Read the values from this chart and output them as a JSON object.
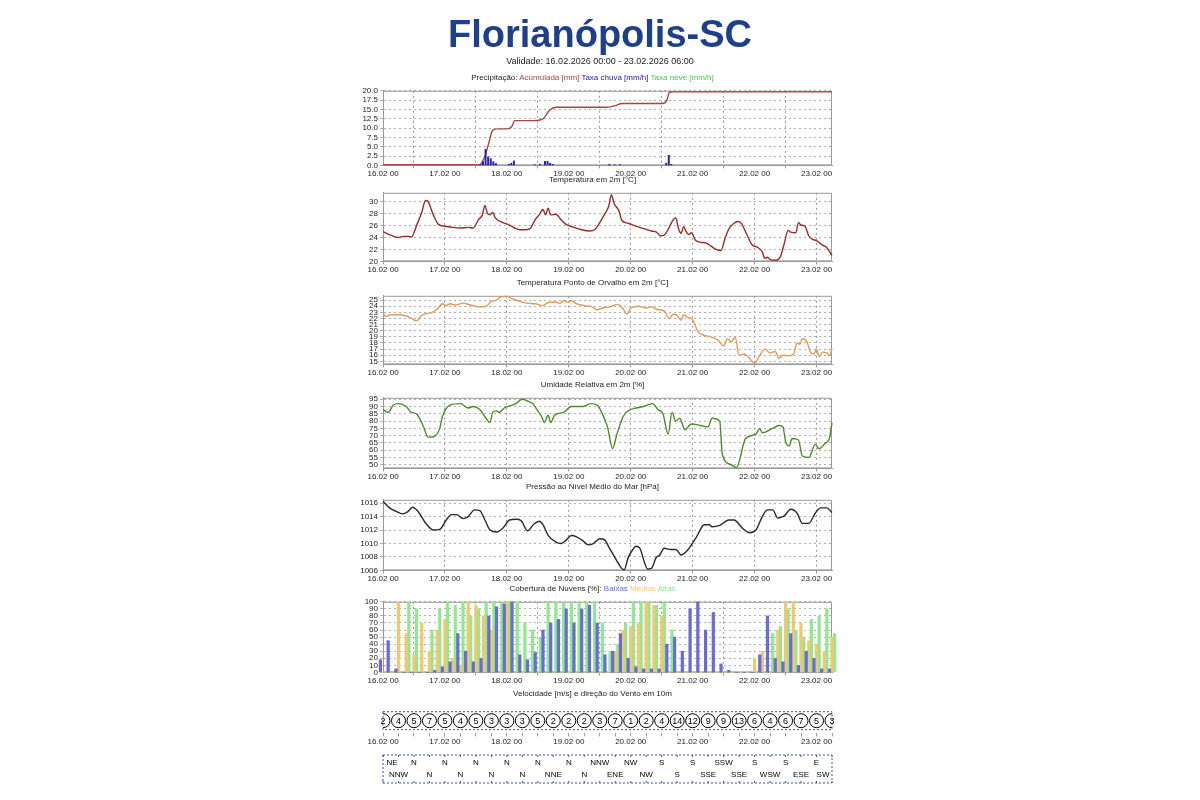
{
  "chart_data": [
    {
      "type": "bar",
      "title": "Florianópolis-SC",
      "subtitle": "Validade: 16.02.2026 00:00 - 23.02.2026 06:00",
      "legend_title": "Precipitação:",
      "legend": "top",
      "grid": true,
      "marker": "none",
      "line_style": "solid",
      "xlim": [
        "--02-16T00:00",
        "--02-23T06:00"
      ],
      "xticks": [
        {
          "value": "--02-16T00:00",
          "label": "16.02 00"
        },
        {
          "value": "--02-17T00:00",
          "label": "17.02 00"
        },
        {
          "value": "--02-18T00:00",
          "label": "18.02 00"
        },
        {
          "value": "--02-19T00:00",
          "label": "19.02 00"
        },
        {
          "value": "--02-20T00:00",
          "label": "20.02 00"
        },
        {
          "value": "--02-21T00:00",
          "label": "21.02 00"
        },
        {
          "value": "--02-22T00:00",
          "label": "22.02 00"
        },
        {
          "value": "--02-23T00:00",
          "label": "23.02 00"
        }
      ],
      "ylim": [
        0,
        20
      ],
      "yticks": [
        {
          "value": 0,
          "label": "0.0"
        },
        {
          "value": 2.5,
          "label": "2.5"
        },
        {
          "value": 5,
          "label": "5.0"
        },
        {
          "value": 7.5,
          "label": "7.5"
        },
        {
          "value": 10,
          "label": "10.0"
        },
        {
          "value": 12.5,
          "label": "12.5"
        },
        {
          "value": 15,
          "label": "15.0"
        },
        {
          "value": 17.5,
          "label": "17.5"
        },
        {
          "value": 20,
          "label": "20.0"
        }
      ],
      "series": [
        {
          "name": "Acumulada [mm]",
          "type": "line",
          "color": "#a84444",
          "x": [
            "--02-16T00:00",
            "--02-17T13:30",
            "--02-17T15:30",
            "--02-17T17:00",
            "--02-17T18:30",
            "--02-17T20:30",
            "--02-18T00:00",
            "--02-18T02:00",
            "--02-18T03:00",
            "--02-18T10:00",
            "--02-18T14:00",
            "--02-18T16:30",
            "--02-18T19:00",
            "--02-19T14:30",
            "--02-19T18:30",
            "--02-19T20:30",
            "--02-20T12:30",
            "--02-20T14:00",
            "--02-20T15:00",
            "--02-20T16:30",
            "--02-23T06:00"
          ],
          "values": [
            0.2,
            0.2,
            2.5,
            6.0,
            9.4,
            9.8,
            9.8,
            10.5,
            12.0,
            12.0,
            12.5,
            14.8,
            15.6,
            15.6,
            16.1,
            16.6,
            16.6,
            17.5,
            19.6,
            19.7,
            19.7
          ]
        },
        {
          "name": "Taxa chuva [mm/h]",
          "color": "#2222a0",
          "x": [
            "--02-17T14:00",
            "--02-17T15:00",
            "--02-17T16:00",
            "--02-17T17:00",
            "--02-17T18:00",
            "--02-17T19:00",
            "--02-17T20:00",
            "--02-18T01:00",
            "--02-18T02:00",
            "--02-18T03:00",
            "--02-18T11:00",
            "--02-18T13:00",
            "--02-18T15:00",
            "--02-18T16:00",
            "--02-18T17:00",
            "--02-18T18:00",
            "--02-19T16:00",
            "--02-19T18:00",
            "--02-19T20:00",
            "--02-20T14:00",
            "--02-20T15:00",
            "--02-20T16:00"
          ],
          "values": [
            0.3,
            1.0,
            4.3,
            2.3,
            1.8,
            1.0,
            0.5,
            0.3,
            0.6,
            1.2,
            0.2,
            0.3,
            1.1,
            1.1,
            0.6,
            0.3,
            0.3,
            0.2,
            0.2,
            0.6,
            2.7,
            0.3
          ]
        },
        {
          "name": "Taxa neve [mm/h]",
          "color": "#44cc44"
        }
      ]
    },
    {
      "type": "line",
      "title": "Temperatura em 2m [°C]",
      "grid": true,
      "marker": "none",
      "line_style": "solid",
      "xlim": [
        "--02-16T00:00",
        "--02-23T06:00"
      ],
      "xticks": [
        {
          "value": "--02-16T00:00",
          "label": "16.02 00"
        },
        {
          "value": "--02-17T00:00",
          "label": "17.02 00"
        },
        {
          "value": "--02-18T00:00",
          "label": "18.02 00"
        },
        {
          "value": "--02-19T00:00",
          "label": "19.02 00"
        },
        {
          "value": "--02-20T00:00",
          "label": "20.02 00"
        },
        {
          "value": "--02-21T00:00",
          "label": "21.02 00"
        },
        {
          "value": "--02-22T00:00",
          "label": "22.02 00"
        },
        {
          "value": "--02-23T00:00",
          "label": "23.02 00"
        }
      ],
      "ylim": [
        20,
        31.5
      ],
      "yticks": [
        20,
        22,
        24,
        26,
        28,
        30
      ],
      "x": [
        "--02-16T00:00",
        "--02-16T03:00",
        "--02-16T06:00",
        "--02-16T08:00",
        "--02-16T10:00",
        "--02-16T11:00",
        "--02-16T13:00",
        "--02-16T15:00",
        "--02-16T16:30",
        "--02-16T17:30",
        "--02-16T19:30",
        "--02-16T21:30",
        "--02-17T00:00",
        "--02-17T03:00",
        "--02-17T06:00",
        "--02-17T09:00",
        "--02-17T11:00",
        "--02-17T13:00",
        "--02-17T14:30",
        "--02-17T15:30",
        "--02-17T16:30",
        "--02-17T17:30",
        "--02-17T18:30",
        "--02-17T19:30",
        "--02-17T22:00",
        "--02-18T01:00",
        "--02-18T03:00",
        "--02-18T05:00",
        "--02-18T07:00",
        "--02-18T09:00",
        "--02-18T11:00",
        "--02-18T12:30",
        "--02-18T14:00",
        "--02-18T15:00",
        "--02-18T16:00",
        "--02-18T17:00",
        "--02-18T19:00",
        "--02-18T21:00",
        "--02-18T23:00",
        "--02-19T02:00",
        "--02-19T05:00",
        "--02-19T08:00",
        "--02-19T10:00",
        "--02-19T12:00",
        "--02-19T14:00",
        "--02-19T15:30",
        "--02-19T16:30",
        "--02-19T17:30",
        "--02-19T19:30",
        "--02-19T20:30",
        "--02-19T23:00",
        "--02-20T02:00",
        "--02-20T05:00",
        "--02-20T08:00",
        "--02-20T10:00",
        "--02-20T11:30",
        "--02-20T13:00",
        "--02-20T15:00",
        "--02-20T16:30",
        "--02-20T17:30",
        "--02-20T18:30",
        "--02-20T19:30",
        "--02-20T20:30",
        "--02-20T21:30",
        "--02-20T22:30",
        "--02-20T23:30",
        "--02-21T01:00",
        "--02-21T03:00",
        "--02-21T05:00",
        "--02-21T07:00",
        "--02-21T09:00",
        "--02-21T11:00",
        "--02-21T12:30",
        "--02-21T14:00",
        "--02-21T16:00",
        "--02-21T17:30",
        "--02-21T19:00",
        "--02-21T21:00",
        "--02-21T23:00",
        "--02-22T01:00",
        "--02-22T03:00",
        "--02-22T04:00",
        "--02-22T05:00",
        "--02-22T06:00",
        "--02-22T08:00",
        "--02-22T10:00",
        "--02-22T11:30",
        "--02-22T13:00",
        "--02-22T14:00",
        "--02-22T16:00",
        "--02-22T17:00",
        "--02-22T18:00",
        "--02-22T19:30",
        "--02-22T21:00",
        "--02-22T22:30",
        "--02-23T00:00",
        "--02-23T02:00",
        "--02-23T04:00",
        "--02-23T06:00"
      ],
      "series": [
        {
          "color": "#9b2b2b",
          "values": [
            25.0,
            24.4,
            24.0,
            24.2,
            24.2,
            24.1,
            26.0,
            28.2,
            30.2,
            30.0,
            27.8,
            26.2,
            25.9,
            25.7,
            25.6,
            25.7,
            25.6,
            27.0,
            27.8,
            29.4,
            28.0,
            27.8,
            28.2,
            27.3,
            26.6,
            26.1,
            25.6,
            25.3,
            25.3,
            25.5,
            27.0,
            27.8,
            28.7,
            27.8,
            28.9,
            27.8,
            27.9,
            27.0,
            26.2,
            25.7,
            25.3,
            25.1,
            25.3,
            26.5,
            28.0,
            29.3,
            31.2,
            29.8,
            28.4,
            26.9,
            26.4,
            25.9,
            25.5,
            25.1,
            24.9,
            24.3,
            24.4,
            25.8,
            27.0,
            27.3,
            25.5,
            24.7,
            25.8,
            25.0,
            24.5,
            24.8,
            23.6,
            23.2,
            23.1,
            22.6,
            22.0,
            21.8,
            23.8,
            25.4,
            26.4,
            26.7,
            26.3,
            24.5,
            22.8,
            22.4,
            21.6,
            20.5,
            20.7,
            20.3,
            20.2,
            20.8,
            23.0,
            25.2,
            24.9,
            24.8,
            26.5,
            26.1,
            25.9,
            24.3,
            23.7,
            23.5,
            22.8,
            22.3,
            21.0
          ]
        }
      ]
    },
    {
      "type": "line",
      "title": "Temperatura Ponto de Orvalho em 2m [°C]",
      "grid": true,
      "marker": "none",
      "line_style": "solid",
      "xlim": [
        "--02-16T00:00",
        "--02-23T06:00"
      ],
      "xticks": [
        {
          "value": "--02-16T00:00",
          "label": "16.02 00"
        },
        {
          "value": "--02-17T00:00",
          "label": "17.02 00"
        },
        {
          "value": "--02-18T00:00",
          "label": "18.02 00"
        },
        {
          "value": "--02-19T00:00",
          "label": "19.02 00"
        },
        {
          "value": "--02-20T00:00",
          "label": "20.02 00"
        },
        {
          "value": "--02-21T00:00",
          "label": "21.02 00"
        },
        {
          "value": "--02-22T00:00",
          "label": "22.02 00"
        },
        {
          "value": "--02-23T00:00",
          "label": "23.02 00"
        }
      ],
      "ylim": [
        14.5,
        25.7
      ],
      "yticks": [
        15,
        16,
        17,
        18,
        19,
        20,
        21,
        22,
        23,
        24,
        25
      ],
      "x": [
        "--02-16T00:00",
        "--02-16T01:00",
        "--02-16T03:00",
        "--02-16T06:00",
        "--02-16T09:00",
        "--02-16T11:00",
        "--02-16T13:00",
        "--02-16T15:00",
        "--02-16T17:00",
        "--02-16T19:00",
        "--02-16T21:00",
        "--02-16T23:00",
        "--02-17T00:30",
        "--02-17T02:00",
        "--02-17T04:00",
        "--02-17T07:00",
        "--02-17T10:00",
        "--02-17T13:00",
        "--02-17T16:00",
        "--02-17T18:00",
        "--02-17T20:00",
        "--02-17T21:30",
        "--02-18T00:00",
        "--02-18T02:00",
        "--02-18T05:00",
        "--02-18T08:00",
        "--02-18T11:00",
        "--02-18T14:00",
        "--02-18T16:00",
        "--02-18T19:00",
        "--02-18T20:30",
        "--02-18T22:00",
        "--02-18T23:30",
        "--02-19T01:00",
        "--02-19T03:00",
        "--02-19T06:00",
        "--02-19T09:00",
        "--02-19T11:00",
        "--02-19T13:00",
        "--02-19T16:00",
        "--02-19T19:00",
        "--02-19T21:00",
        "--02-19T22:30",
        "--02-20T00:00",
        "--02-20T03:00",
        "--02-20T06:00",
        "--02-20T08:00",
        "--02-20T10:00",
        "--02-20T13:00",
        "--02-20T15:00",
        "--02-20T16:30",
        "--02-20T18:00",
        "--02-20T19:30",
        "--02-20T20:30",
        "--02-20T22:00",
        "--02-21T00:00",
        "--02-21T02:00",
        "--02-21T04:00",
        "--02-21T07:00",
        "--02-21T10:00",
        "--02-21T12:00",
        "--02-21T13:30",
        "--02-21T15:00",
        "--02-21T16:30",
        "--02-21T18:00",
        "--02-21T20:00",
        "--02-21T22:00",
        "--02-22T00:00",
        "--02-22T02:00",
        "--02-22T04:00",
        "--02-22T06:00",
        "--02-22T08:00",
        "--02-22T09:30",
        "--02-22T11:00",
        "--02-22T13:00",
        "--02-22T15:00",
        "--02-22T16:30",
        "--02-22T17:30",
        "--02-22T18:30",
        "--02-22T20:00",
        "--02-22T22:00",
        "--02-22T23:00",
        "--02-23T00:00",
        "--02-23T01:00",
        "--02-23T02:30",
        "--02-23T04:00",
        "--02-23T05:00",
        "--02-23T06:00"
      ],
      "series": [
        {
          "color": "#e29a55",
          "values": [
            23.1,
            22.3,
            22.6,
            22.6,
            22.4,
            22.0,
            21.6,
            22.5,
            22.8,
            23.0,
            23.5,
            24.4,
            24.1,
            24.4,
            24.2,
            24.5,
            24.2,
            23.9,
            24.0,
            24.8,
            25.0,
            25.5,
            25.6,
            25.2,
            24.8,
            24.5,
            24.4,
            24.1,
            24.6,
            24.7,
            24.5,
            24.9,
            24.7,
            24.9,
            24.4,
            24.1,
            23.9,
            23.4,
            23.7,
            23.9,
            24.3,
            23.6,
            22.7,
            23.7,
            24.0,
            23.7,
            23.9,
            23.5,
            23.2,
            22.0,
            22.7,
            22.5,
            21.7,
            22.6,
            22.2,
            21.8,
            19.9,
            19.3,
            19.0,
            18.4,
            17.5,
            18.7,
            18.2,
            18.9,
            16.0,
            16.2,
            15.5,
            14.7,
            16.0,
            17.0,
            16.4,
            16.6,
            15.5,
            16.0,
            15.9,
            16.1,
            18.0,
            17.8,
            18.7,
            18.4,
            16.3,
            16.2,
            17.0,
            15.8,
            16.5,
            16.4,
            15.9,
            17.1
          ]
        }
      ]
    },
    {
      "type": "line",
      "title": "Umidade Relativa em 2m [%]",
      "grid": true,
      "marker": "none",
      "line_style": "solid",
      "xlim": [
        "--02-16T00:00",
        "--02-23T06:00"
      ],
      "xticks": [
        {
          "value": "--02-16T00:00",
          "label": "16.02 00"
        },
        {
          "value": "--02-17T00:00",
          "label": "17.02 00"
        },
        {
          "value": "--02-18T00:00",
          "label": "18.02 00"
        },
        {
          "value": "--02-19T00:00",
          "label": "19.02 00"
        },
        {
          "value": "--02-20T00:00",
          "label": "20.02 00"
        },
        {
          "value": "--02-21T00:00",
          "label": "21.02 00"
        },
        {
          "value": "--02-22T00:00",
          "label": "22.02 00"
        },
        {
          "value": "--02-23T00:00",
          "label": "23.02 00"
        }
      ],
      "ylim": [
        47.5,
        96
      ],
      "yticks": [
        50,
        55,
        60,
        65,
        70,
        75,
        80,
        85,
        90,
        95
      ],
      "x": [
        "--02-16T00:00",
        "--02-16T02:00",
        "--02-16T04:00",
        "--02-16T06:00",
        "--02-16T09:00",
        "--02-16T11:00",
        "--02-16T13:00",
        "--02-16T15:30",
        "--02-16T17:30",
        "--02-16T18:30",
        "--02-16T22:00",
        "--02-16T23:00",
        "--02-17T02:00",
        "--02-17T06:00",
        "--02-17T09:00",
        "--02-17T11:00",
        "--02-17T13:30",
        "--02-17T15:30",
        "--02-17T17:30",
        "--02-17T18:30",
        "--02-17T20:00",
        "--02-17T21:00",
        "--02-17T23:00",
        "--02-18T03:30",
        "--02-18T06:00",
        "--02-18T09:00",
        "--02-18T10:00",
        "--02-18T12:00",
        "--02-18T13:30",
        "--02-18T14:30",
        "--02-18T16:00",
        "--02-18T17:00",
        "--02-18T18:30",
        "--02-18T22:00",
        "--02-19T01:00",
        "--02-19T05:30",
        "--02-19T08:30",
        "--02-19T11:00",
        "--02-19T13:00",
        "--02-19T15:00",
        "--02-19T17:00",
        "--02-19T18:30",
        "--02-19T21:00",
        "--02-19T23:00",
        "--02-20T02:00",
        "--02-20T05:00",
        "--02-20T08:30",
        "--02-20T10:30",
        "--02-20T12:30",
        "--02-20T14:30",
        "--02-20T16:00",
        "--02-20T17:30",
        "--02-20T19:00",
        "--02-20T21:00",
        "--02-20T23:30",
        "--02-21T03:00",
        "--02-21T06:00",
        "--02-21T07:30",
        "--02-21T10:30",
        "--02-21T11:30",
        "--02-21T15:00",
        "--02-21T17:00",
        "--02-21T20:30",
        "--02-22T00:30",
        "--02-22T02:00",
        "--02-22T03:00",
        "--02-22T07:00",
        "--02-22T09:30",
        "--02-22T11:00",
        "--02-22T12:00",
        "--02-22T13:30",
        "--02-22T14:30",
        "--02-22T17:00",
        "--02-22T18:30",
        "--02-22T21:00",
        "--02-22T23:30",
        "--02-23T01:00",
        "--02-23T03:30",
        "--02-23T05:00",
        "--02-23T06:00"
      ],
      "series": [
        {
          "color": "#4c8c2c",
          "values": [
            88,
            86,
            91,
            92,
            90,
            86,
            85,
            77,
            69,
            69,
            75,
            83,
            91,
            92,
            89,
            90,
            88,
            83,
            79,
            86,
            87,
            86,
            89,
            92,
            95,
            93,
            92,
            87,
            83,
            79,
            84,
            79,
            84,
            86,
            90,
            90,
            92,
            91,
            85,
            76,
            61,
            70,
            83,
            87,
            89,
            90,
            92,
            88,
            85,
            71,
            86,
            80,
            82,
            74,
            78,
            77,
            76,
            82,
            80,
            57,
            50,
            48,
            68,
            71,
            75,
            72,
            75,
            77,
            76,
            66,
            63,
            68,
            67,
            56,
            55,
            64,
            61,
            65,
            68,
            79
          ]
        }
      ]
    },
    {
      "type": "line",
      "title": "Pressão ao Nível Médio do Mar [hPa]",
      "grid": true,
      "marker": "none",
      "line_style": "solid",
      "xlim": [
        "--02-16T00:00",
        "--02-23T06:00"
      ],
      "xticks": [
        {
          "value": "--02-16T00:00",
          "label": "16.02 00"
        },
        {
          "value": "--02-17T00:00",
          "label": "17.02 00"
        },
        {
          "value": "--02-18T00:00",
          "label": "18.02 00"
        },
        {
          "value": "--02-19T00:00",
          "label": "19.02 00"
        },
        {
          "value": "--02-20T00:00",
          "label": "20.02 00"
        },
        {
          "value": "--02-21T00:00",
          "label": "21.02 00"
        },
        {
          "value": "--02-22T00:00",
          "label": "22.02 00"
        },
        {
          "value": "--02-23T00:00",
          "label": "23.02 00"
        }
      ],
      "ylim": [
        1006,
        1016.5
      ],
      "yticks": [
        1006,
        1008,
        1010,
        1012,
        1014,
        1016
      ],
      "x": [
        "--02-16T00:00",
        "--02-16T02:30",
        "--02-16T05:00",
        "--02-16T07:30",
        "--02-16T09:30",
        "--02-16T11:30",
        "--02-16T13:30",
        "--02-16T17:00",
        "--02-16T19:30",
        "--02-16T22:00",
        "--02-17T00:30",
        "--02-17T02:30",
        "--02-17T04:30",
        "--02-17T07:00",
        "--02-17T09:00",
        "--02-17T11:30",
        "--02-17T13:30",
        "--02-17T15:30",
        "--02-17T17:30",
        "--02-17T20:00",
        "--02-17T22:30",
        "--02-18T01:00",
        "--02-18T03:30",
        "--02-18T05:30",
        "--02-18T08:00",
        "--02-18T10:30",
        "--02-18T12:30",
        "--02-18T14:00",
        "--02-18T16:00",
        "--02-18T19:00",
        "--02-18T21:00",
        "--02-18T23:00",
        "--02-19T01:00",
        "--02-19T03:00",
        "--02-19T05:30",
        "--02-19T07:30",
        "--02-19T09:30",
        "--02-19T12:00",
        "--02-19T14:00",
        "--02-19T15:30",
        "--02-19T18:30",
        "--02-19T20:30",
        "--02-19T21:30",
        "--02-19T23:00",
        "--02-20T01:00",
        "--02-20T02:00",
        "--02-20T03:30",
        "--02-20T05:30",
        "--02-20T06:30",
        "--02-20T08:00",
        "--02-20T10:00",
        "--02-20T11:00",
        "--02-20T13:00",
        "--02-20T15:30",
        "--02-20T17:30",
        "--02-20T19:30",
        "--02-20T22:00",
        "--02-21T01:30",
        "--02-21T04:30",
        "--02-21T06:30",
        "--02-21T07:30",
        "--02-21T10:30",
        "--02-21T14:00",
        "--02-21T16:00",
        "--02-21T19:30",
        "--02-21T22:00",
        "--02-22T00:30",
        "--02-22T03:00",
        "--02-22T05:00",
        "--02-22T07:00",
        "--02-22T09:00",
        "--02-22T11:30",
        "--02-22T14:00",
        "--02-22T16:30",
        "--02-22T18:30",
        "--02-22T21:00",
        "--02-22T23:30",
        "--02-23T01:30",
        "--02-23T04:00",
        "--02-23T06:00"
      ],
      "series": [
        {
          "color": "#2a2a2a",
          "values": [
            1016.3,
            1015.3,
            1014.8,
            1014.4,
            1014.7,
            1015.4,
            1014.8,
            1012.8,
            1012.0,
            1012.1,
            1013.5,
            1014.3,
            1014.3,
            1013.7,
            1014.0,
            1015.0,
            1014.9,
            1013.5,
            1012.0,
            1011.7,
            1012.3,
            1013.5,
            1013.6,
            1013.4,
            1011.9,
            1012.9,
            1013.3,
            1012.8,
            1011.2,
            1010.2,
            1010.0,
            1010.5,
            1011.2,
            1011.0,
            1010.4,
            1009.8,
            1010.0,
            1010.7,
            1010.5,
            1009.5,
            1007.5,
            1006.3,
            1006.1,
            1007.9,
            1009.2,
            1009.6,
            1009.3,
            1007.0,
            1006.2,
            1006.3,
            1008.0,
            1008.2,
            1009.3,
            1009.1,
            1009.1,
            1008.3,
            1009.0,
            1011.0,
            1012.8,
            1012.8,
            1012.5,
            1012.7,
            1013.5,
            1013.5,
            1012.2,
            1011.6,
            1012.0,
            1014.0,
            1015.0,
            1015.0,
            1013.8,
            1014.1,
            1015.1,
            1014.5,
            1013.0,
            1013.0,
            1014.5,
            1015.3,
            1015.3,
            1014.6
          ]
        }
      ]
    },
    {
      "type": "bar",
      "legend_title": "Cobertura de Nuvens [%]:",
      "legend": "top",
      "grid": true,
      "xlim": [
        "--02-16T00:00",
        "--02-23T06:00"
      ],
      "xticks": [
        {
          "value": "--02-16T00:00",
          "label": "16.02 00"
        },
        {
          "value": "--02-17T00:00",
          "label": "17.02 00"
        },
        {
          "value": "--02-18T00:00",
          "label": "18.02 00"
        },
        {
          "value": "--02-19T00:00",
          "label": "19.02 00"
        },
        {
          "value": "--02-20T00:00",
          "label": "20.02 00"
        },
        {
          "value": "--02-21T00:00",
          "label": "21.02 00"
        },
        {
          "value": "--02-22T00:00",
          "label": "22.02 00"
        },
        {
          "value": "--02-23T00:00",
          "label": "23.02 00"
        }
      ],
      "ylim": [
        0,
        100
      ],
      "yticks": [
        0,
        10,
        20,
        30,
        40,
        50,
        60,
        70,
        80,
        90,
        100
      ],
      "x": [
        "--02-16T00:00",
        "--02-16T03:00",
        "--02-16T06:00",
        "--02-16T09:00",
        "--02-16T12:00",
        "--02-16T15:00",
        "--02-16T18:00",
        "--02-16T21:00",
        "--02-17T00:00",
        "--02-17T03:00",
        "--02-17T06:00",
        "--02-17T09:00",
        "--02-17T12:00",
        "--02-17T15:00",
        "--02-17T18:00",
        "--02-17T21:00",
        "--02-18T00:00",
        "--02-18T03:00",
        "--02-18T06:00",
        "--02-18T09:00",
        "--02-18T12:00",
        "--02-18T15:00",
        "--02-18T18:00",
        "--02-18T21:00",
        "--02-19T00:00",
        "--02-19T03:00",
        "--02-19T06:00",
        "--02-19T09:00",
        "--02-19T12:00",
        "--02-19T15:00",
        "--02-19T18:00",
        "--02-19T21:00",
        "--02-20T00:00",
        "--02-20T03:00",
        "--02-20T06:00",
        "--02-20T09:00",
        "--02-20T12:00",
        "--02-20T15:00",
        "--02-20T18:00",
        "--02-20T21:00",
        "--02-21T00:00",
        "--02-21T03:00",
        "--02-21T06:00",
        "--02-21T09:00",
        "--02-21T12:00",
        "--02-21T15:00",
        "--02-21T18:00",
        "--02-21T21:00",
        "--02-22T00:00",
        "--02-22T03:00",
        "--02-22T06:00",
        "--02-22T09:00",
        "--02-22T12:00",
        "--02-22T15:00",
        "--02-22T18:00",
        "--02-22T21:00",
        "--02-23T00:00",
        "--02-23T03:00",
        "--02-23T06:00"
      ],
      "series": [
        {
          "name": "Baixas",
          "color": "#6a6ad8",
          "values": [
            18,
            45,
            5,
            0,
            0,
            0,
            0,
            3,
            8,
            15,
            55,
            30,
            15,
            20,
            80,
            93,
            97,
            100,
            25,
            18,
            28,
            60,
            70,
            75,
            90,
            70,
            90,
            95,
            70,
            25,
            30,
            55,
            20,
            8,
            5,
            5,
            5,
            40,
            50,
            30,
            90,
            100,
            60,
            85,
            12,
            3,
            0,
            0,
            0,
            25,
            80,
            20,
            15,
            55,
            10,
            30,
            20,
            5,
            5
          ]
        },
        {
          "name": "Médias",
          "color": "#f0c870",
          "values": [
            0,
            0,
            100,
            55,
            25,
            70,
            30,
            60,
            75,
            20,
            10,
            100,
            95,
            80,
            60,
            0,
            100,
            0,
            0,
            0,
            0,
            0,
            0,
            0,
            0,
            0,
            0,
            0,
            0,
            0,
            30,
            60,
            65,
            70,
            100,
            95,
            80,
            0,
            0,
            0,
            0,
            0,
            0,
            0,
            0,
            0,
            0,
            0,
            20,
            30,
            0,
            60,
            100,
            100,
            70,
            45,
            40,
            30,
            50
          ]
        },
        {
          "name": "Altas",
          "color": "#90e890",
          "values": [
            0,
            0,
            0,
            100,
            90,
            0,
            60,
            90,
            100,
            95,
            100,
            80,
            90,
            100,
            100,
            100,
            100,
            100,
            70,
            60,
            50,
            100,
            100,
            100,
            100,
            100,
            100,
            100,
            70,
            30,
            40,
            70,
            100,
            100,
            100,
            95,
            100,
            60,
            0,
            0,
            0,
            0,
            0,
            0,
            0,
            0,
            0,
            0,
            0,
            0,
            55,
            65,
            90,
            60,
            50,
            75,
            80,
            90,
            55
          ]
        }
      ]
    },
    {
      "type": "other",
      "title": "Velocidade [m/s] e direção do Vento em 10m",
      "color": "#000000",
      "data_labels": true,
      "categories": [
        "16.02 00",
        null,
        null,
        null,
        "17.02 00",
        null,
        null,
        null,
        "18.02 00",
        null,
        null,
        null,
        "19.02 00",
        null,
        null,
        null,
        "20.02 00",
        null,
        null,
        null,
        "21.02 00",
        null,
        null,
        null,
        "22.02 00",
        null,
        null,
        null,
        "23.02 00",
        null
      ],
      "values": [
        2,
        4,
        5,
        7,
        5,
        4,
        5,
        3,
        3,
        3,
        5,
        2,
        2,
        2,
        3,
        7,
        1,
        2,
        4,
        14,
        12,
        9,
        9,
        13,
        6,
        4,
        6,
        7,
        5,
        3
      ]
    },
    {
      "type": "other",
      "categories": [
        "NE",
        "NNW",
        "N",
        "N",
        "N",
        "N",
        "N",
        "N",
        "N",
        "N",
        "N",
        "NNE",
        "N",
        "N",
        "NNW",
        "ENE",
        "NW",
        "NW",
        "S",
        "S",
        "S",
        "SSE",
        "SSW",
        "SSE",
        "S",
        "WSW",
        "S",
        "ESE",
        "E",
        "SW"
      ]
    }
  ]
}
